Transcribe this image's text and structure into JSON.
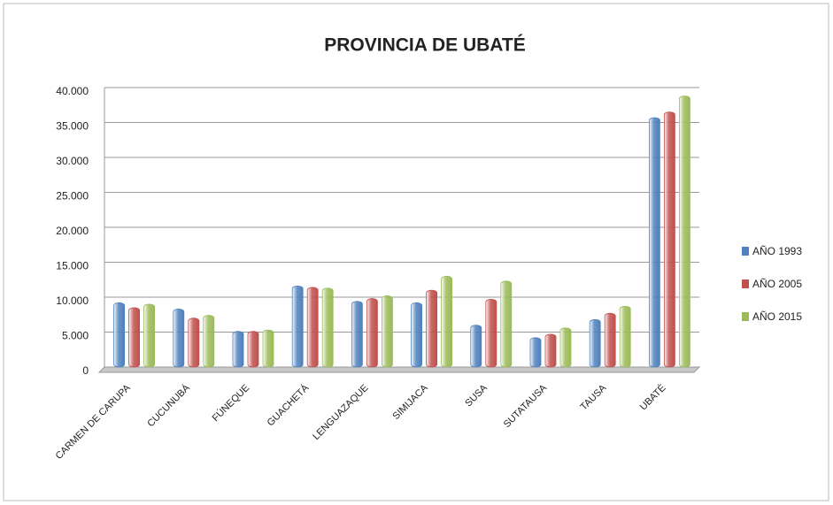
{
  "chart_data": {
    "type": "bar",
    "title": "PROVINCIA DE UBATÉ",
    "categories": [
      "CARMEN DE CARUPA",
      "CUCUNUBÁ",
      "FÚNEQUE",
      "GUACHETÁ",
      "LENGUAZAQUE",
      "SIMIJACA",
      "SUSA",
      "SUTATAUSA",
      "TAUSA",
      "UBATÉ"
    ],
    "series": [
      {
        "name": "AÑO 1993",
        "color": "#4f81bd",
        "values": [
          9200,
          8300,
          5100,
          11600,
          9400,
          9200,
          6000,
          4200,
          6800,
          35700
        ]
      },
      {
        "name": "AÑO 2005",
        "color": "#c0504d",
        "values": [
          8500,
          7000,
          5100,
          11400,
          9800,
          11000,
          9700,
          4700,
          7700,
          36500
        ]
      },
      {
        "name": "AÑO 2015",
        "color": "#9bbb59",
        "values": [
          9000,
          7400,
          5300,
          11300,
          10200,
          13000,
          12300,
          5600,
          8700,
          38800
        ]
      }
    ],
    "ylim": [
      0,
      40000
    ],
    "yticks": [
      0,
      {
        "value": 5000,
        "label": "5.000"
      },
      {
        "value": 10000,
        "label": "10.000"
      },
      {
        "value": 15000,
        "label": "15.000"
      },
      {
        "value": 20000,
        "label": "20.000"
      },
      {
        "value": 25000,
        "label": "25.000"
      },
      {
        "value": 30000,
        "label": "30.000"
      },
      {
        "value": 35000,
        "label": "35.000"
      },
      {
        "value": 40000,
        "label": "40.000"
      }
    ],
    "grid": true,
    "legend": "right"
  }
}
